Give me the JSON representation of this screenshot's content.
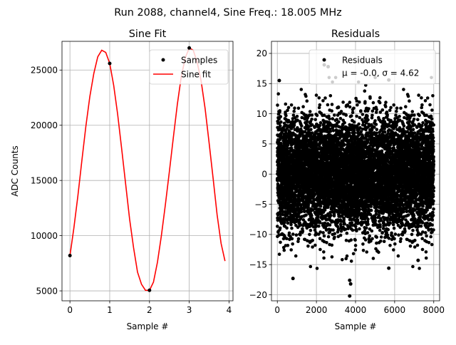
{
  "figure": {
    "suptitle": "Run 2088, channel4, Sine Freq.: 18.005 MHz"
  },
  "chart_data": [
    {
      "type": "line",
      "title": "Sine Fit",
      "xlabel": "Sample #",
      "ylabel": "ADC Counts",
      "xlim": [
        -0.2,
        4.1
      ],
      "ylim": [
        4100,
        27600
      ],
      "grid": true,
      "legend_position": "top-right",
      "xticks": [
        0,
        1,
        2,
        3,
        4
      ],
      "yticks": [
        5000,
        10000,
        15000,
        20000,
        25000
      ],
      "samples": {
        "name": "Samples",
        "color": "#000000",
        "x": [
          0,
          1,
          2,
          3
        ],
        "y": [
          8200,
          25600,
          5050,
          27000
        ]
      },
      "fit": {
        "name": "Sine fit",
        "color": "#ff0000",
        "x": [
          0,
          0.1,
          0.2,
          0.3,
          0.4,
          0.5,
          0.6,
          0.7,
          0.8,
          0.9,
          1.0,
          1.1,
          1.2,
          1.3,
          1.4,
          1.5,
          1.6,
          1.7,
          1.8,
          1.9,
          2.0,
          2.1,
          2.2,
          2.3,
          2.4,
          2.5,
          2.6,
          2.7,
          2.8,
          2.9,
          3.0,
          3.1,
          3.2,
          3.3,
          3.4,
          3.5,
          3.6,
          3.7,
          3.8,
          3.9
        ],
        "y": [
          8200,
          10700,
          13600,
          16800,
          19900,
          22600,
          24700,
          26200,
          26800,
          26600,
          25600,
          23600,
          21000,
          17900,
          14700,
          11500,
          8900,
          6700,
          5600,
          5050,
          5050,
          5800,
          7600,
          10000,
          12800,
          15800,
          18900,
          21900,
          24400,
          26100,
          27000,
          26800,
          25700,
          24000,
          21500,
          18400,
          15200,
          11900,
          9300,
          7700
        ]
      }
    },
    {
      "type": "scatter",
      "title": "Residuals",
      "xlabel": "Sample #",
      "ylabel": "",
      "xlim": [
        -300,
        8300
      ],
      "ylim": [
        -21,
        22
      ],
      "grid": true,
      "legend_position": "top-right",
      "xticks": [
        0,
        2000,
        4000,
        6000,
        8000
      ],
      "yticks": [
        -20,
        -15,
        -10,
        -5,
        0,
        5,
        10,
        15,
        20
      ],
      "series": {
        "name": "Residuals",
        "stats_label": "μ = -0.0, σ = 4.62",
        "color": "#000000",
        "n_points": 8000,
        "mean": 0.0,
        "sigma": 4.62,
        "outliers": [
          {
            "x": 2400,
            "y": 18.1
          },
          {
            "x": 2600,
            "y": 17.8
          },
          {
            "x": 3700,
            "y": -20.2
          },
          {
            "x": 3750,
            "y": -18.2
          },
          {
            "x": 3700,
            "y": -17.6
          },
          {
            "x": 800,
            "y": -17.3
          },
          {
            "x": 5700,
            "y": 15.6
          },
          {
            "x": 100,
            "y": 15.5
          },
          {
            "x": 5700,
            "y": -15.6
          },
          {
            "x": 7200,
            "y": -14.3
          }
        ]
      }
    }
  ]
}
